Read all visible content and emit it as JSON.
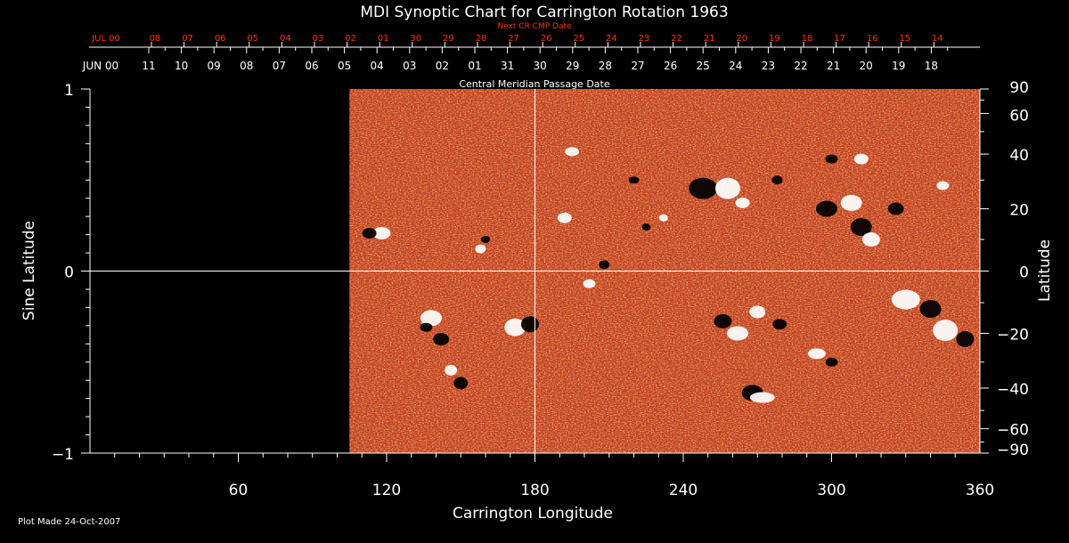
{
  "chart_data": {
    "type": "heatmap",
    "title": "MDI Synoptic Chart for Carrington Rotation 1963",
    "xlabel": "Carrington Longitude",
    "ylabel": "Sine Latitude",
    "ylabel_right": "Latitude",
    "top_axis_label": "Central Meridian Passage Date",
    "next_cr_label": "Next CR CMP Date",
    "footer": "Plot Made 24-Oct-2007",
    "xlim": [
      0,
      360
    ],
    "ylim": [
      -1,
      1
    ],
    "x_ticks": [
      "60",
      "120",
      "180",
      "240",
      "300",
      "360"
    ],
    "y_ticks": [
      "1",
      "0",
      "−1"
    ],
    "lat_ticks": [
      "90",
      "60",
      "40",
      "20",
      "0",
      "−20",
      "−40",
      "−60",
      "−90"
    ],
    "cmp_dates": [
      "JUN 00",
      "11",
      "10",
      "09",
      "08",
      "07",
      "06",
      "05",
      "04",
      "03",
      "02",
      "01",
      "31",
      "30",
      "29",
      "28",
      "27",
      "26",
      "25",
      "24",
      "23",
      "22",
      "21",
      "20",
      "19",
      "18"
    ],
    "next_cr_dates": [
      "JUL 00",
      "08",
      "07",
      "06",
      "05",
      "04",
      "03",
      "02",
      "01",
      "30",
      "29",
      "28",
      "27",
      "26",
      "25",
      "24",
      "23",
      "22",
      "21",
      "20",
      "19",
      "18",
      "17",
      "16",
      "15",
      "14"
    ],
    "data_start_longitude": 105,
    "colors": {
      "background": "#000000",
      "text": "#ffffff",
      "red_text": "#ff3300",
      "field_base": "#c83c14",
      "positive": "#ffffff",
      "negative": "#000000"
    }
  }
}
